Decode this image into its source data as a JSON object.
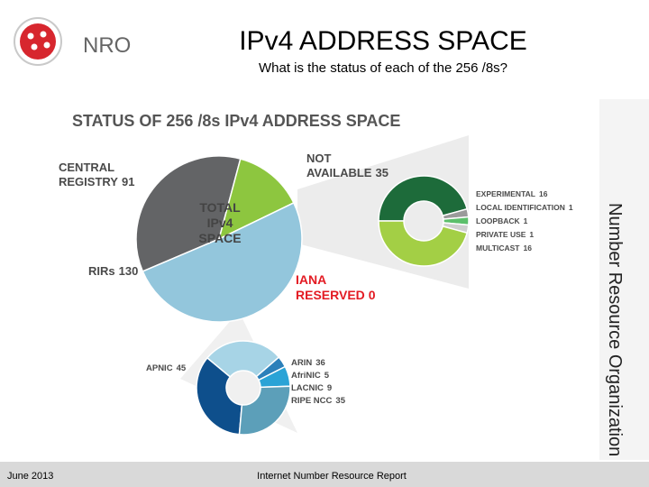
{
  "header": {
    "logo": "NRO",
    "title": "IPv4 ADDRESS SPACE",
    "subtitle": "What is the status of each of the 256 /8s?"
  },
  "side_text": "Number Resource Organization",
  "footer": {
    "date": "June 2013",
    "report": "Internet Number Resource Report"
  },
  "chart_data": [
    {
      "type": "pie",
      "title": "STATUS OF 256 /8s IPv4 ADDRESS SPACE",
      "center_label": "TOTAL IPv4 SPACE",
      "categories": [
        "CENTRAL REGISTRY",
        "NOT AVAILABLE",
        "IANA RESERVED",
        "RIRs"
      ],
      "values": [
        91,
        35,
        0,
        130
      ],
      "colors": [
        "#636466",
        "#8dc63f",
        "#e31b23",
        "#93c6dc"
      ]
    },
    {
      "type": "donut",
      "categories": [
        "EXPERIMENTAL",
        "LOCAL IDENTIFICATION",
        "LOOPBACK",
        "PRIVATE USE",
        "MULTICAST"
      ],
      "values": [
        16,
        1,
        1,
        1,
        16
      ],
      "colors": [
        "#1d6b3a",
        "#9a9a9a",
        "#5cbf6b",
        "#cfcfcf",
        "#a3cf45"
      ]
    },
    {
      "type": "donut",
      "categories": [
        "APNIC",
        "ARIN",
        "AfriNIC",
        "LACNIC",
        "RIPE NCC"
      ],
      "values": [
        45,
        36,
        5,
        9,
        35
      ],
      "colors": [
        "#0e4f8c",
        "#a7d4e6",
        "#2b80ba",
        "#2aa3d6",
        "#5c9fb9"
      ]
    }
  ]
}
